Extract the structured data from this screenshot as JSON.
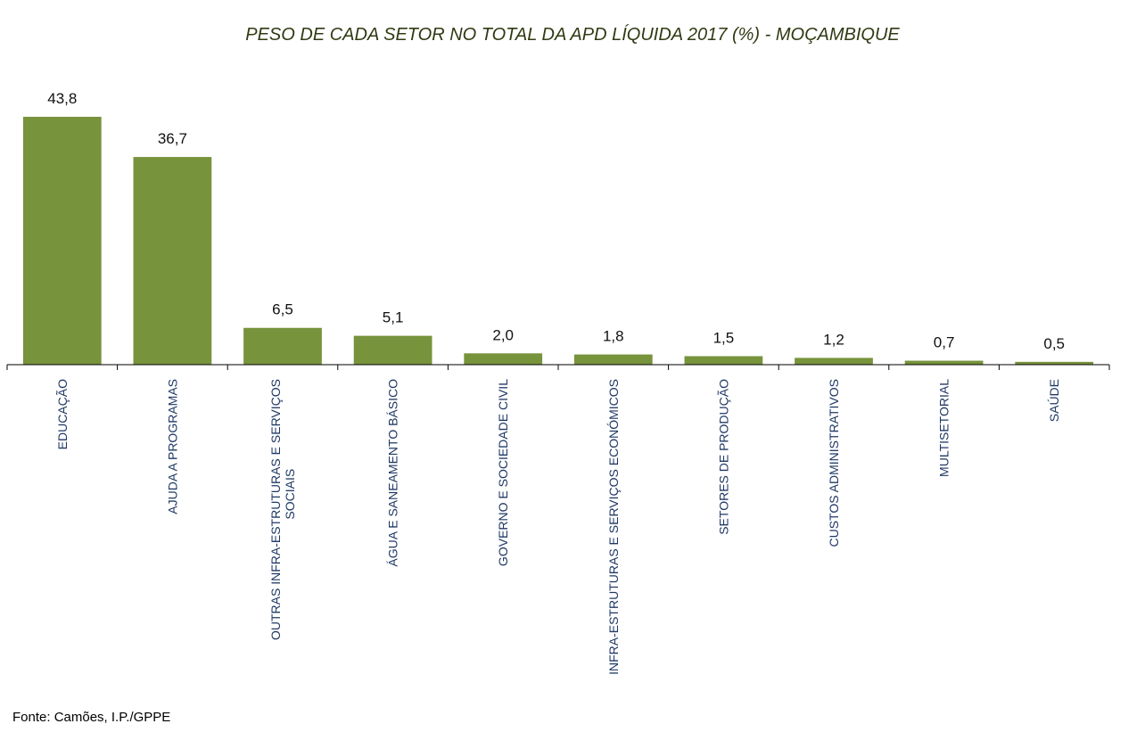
{
  "chart_data": {
    "type": "bar",
    "title": "PESO DE CADA SETOR NO TOTAL DA APD LÍQUIDA 2017  (%) - MOÇAMBIQUE",
    "categories": [
      [
        "EDUCAÇÃO"
      ],
      [
        "AJUDA A PROGRAMAS"
      ],
      [
        "OUTRAS INFRA-ESTRUTURAS E SERVIÇOS",
        "SOCIAIS"
      ],
      [
        "ÁGUA E SANEAMENTO BÁSICO"
      ],
      [
        "GOVERNO E SOCIEDADE CIVIL"
      ],
      [
        "INFRA-ESTRUTURAS E SERVIÇOS ECONÓMICOS"
      ],
      [
        "SETORES DE PRODUÇÃO"
      ],
      [
        "CUSTOS ADMINISTRATIVOS"
      ],
      [
        "MULTISETORIAL"
      ],
      [
        "SAÚDE"
      ]
    ],
    "values": [
      43.8,
      36.7,
      6.5,
      5.1,
      2.0,
      1.8,
      1.5,
      1.2,
      0.7,
      0.5
    ],
    "value_labels": [
      "43,8",
      "36,7",
      "6,5",
      "5,1",
      "2,0",
      "1,8",
      "1,5",
      "1,2",
      "0,7",
      "0,5"
    ],
    "bar_color": "#77933c",
    "axis_color": "#000000",
    "grid": false,
    "legend": "none",
    "xlabel": "",
    "ylabel": ""
  },
  "source": "Fonte: Camões, I.P./GPPE"
}
